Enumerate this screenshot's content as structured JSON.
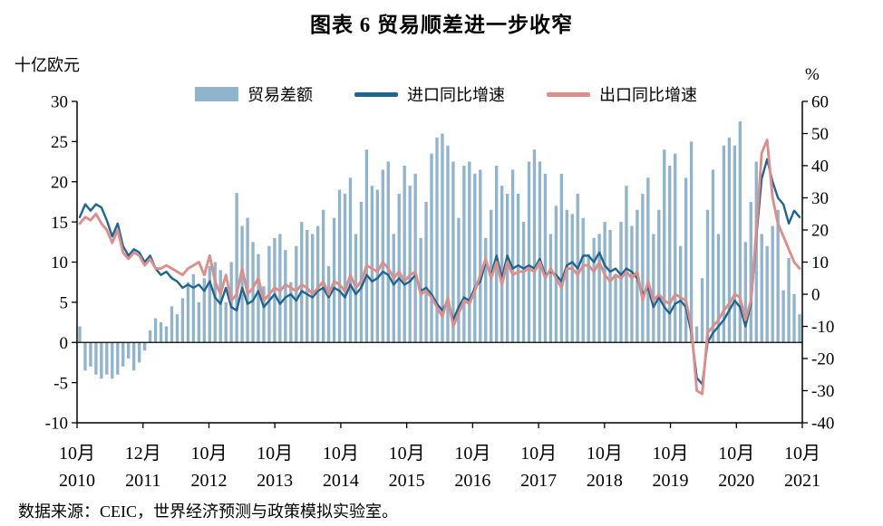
{
  "page": {
    "title": "图表 6 贸易顺差进一步收窄",
    "source": "数据来源：CEIC，世界经济预测与政策模拟实验室。"
  },
  "chart_data": {
    "type": "combo-bar-line",
    "title": "图表 6 贸易顺差进一步收窄",
    "legend_position": "top",
    "grid": false,
    "left_axis": {
      "label": "十亿欧元",
      "min": -10,
      "max": 30,
      "ticks": [
        30,
        25,
        20,
        15,
        10,
        5,
        0,
        -5,
        -10
      ]
    },
    "right_axis": {
      "label": "%",
      "min": -40,
      "max": 60,
      "ticks": [
        60,
        50,
        40,
        30,
        20,
        10,
        0,
        -10,
        -20,
        -30,
        -40
      ]
    },
    "x": {
      "start": "2010-10",
      "end": "2021-11",
      "frequency": "monthly"
    },
    "x_ticks": [
      {
        "month": "10月",
        "year": "2010"
      },
      {
        "month": "12月",
        "year": "2011"
      },
      {
        "month": "10月",
        "year": "2012"
      },
      {
        "month": "10月",
        "year": "2013"
      },
      {
        "month": "10月",
        "year": "2014"
      },
      {
        "month": "10月",
        "year": "2015"
      },
      {
        "month": "10月",
        "year": "2016"
      },
      {
        "month": "10月",
        "year": "2017"
      },
      {
        "month": "10月",
        "year": "2018"
      },
      {
        "month": "10月",
        "year": "2019"
      },
      {
        "month": "10月",
        "year": "2020"
      },
      {
        "month": "10月",
        "year": "2021"
      }
    ],
    "series": [
      {
        "name": "贸易差额",
        "type": "bar",
        "axis": "left",
        "color": "#8FB4CB",
        "values": [
          2.0,
          -3.5,
          -3.0,
          -4.0,
          -4.5,
          -4.0,
          -4.5,
          -4.0,
          -3.0,
          -2.0,
          -3.5,
          -2.5,
          -1.0,
          1.5,
          3.0,
          2.5,
          2.0,
          4.5,
          3.5,
          5.5,
          7.5,
          8.5,
          5.0,
          8.0,
          9.5,
          10.0,
          9.0,
          5.0,
          10.0,
          18.6,
          14.5,
          15.5,
          12.5,
          11.0,
          7.0,
          12.0,
          13.0,
          13.5,
          11.5,
          7.5,
          12.0,
          15.0,
          14.0,
          13.5,
          14.5,
          16.5,
          9.5,
          15.5,
          19.0,
          18.5,
          20.5,
          13.5,
          17.5,
          24.0,
          19.5,
          19.0,
          21.5,
          22.5,
          13.5,
          18.5,
          22.0,
          19.5,
          21.0,
          13.0,
          17.5,
          23.5,
          25.5,
          26.0,
          24.5,
          22.5,
          15.5,
          22.0,
          22.5,
          21.0,
          21.5,
          13.0,
          16.5,
          22.0,
          19.5,
          18.5,
          21.5,
          18.5,
          15.0,
          22.5,
          24.0,
          22.5,
          21.0,
          13.5,
          17.0,
          21.0,
          16.5,
          16.0,
          18.5,
          15.5,
          11.0,
          13.0,
          13.5,
          15.0,
          14.0,
          8.5,
          15.0,
          19.5,
          14.5,
          16.5,
          18.5,
          20.5,
          13.5,
          16.5,
          24.0,
          22.0,
          23.5,
          12.0,
          20.5,
          25.0,
          2.0,
          8.0,
          16.5,
          21.5,
          13.5,
          24.5,
          25.5,
          24.5,
          27.5,
          12.5,
          17.5,
          22.5,
          13.5,
          12.0,
          14.5,
          16.5,
          6.5,
          10.5,
          6.0,
          3.5
        ]
      },
      {
        "name": "进口同比增速",
        "type": "line",
        "axis": "right",
        "color": "#1F6592",
        "values": [
          24,
          28,
          26,
          28,
          27,
          23,
          18,
          22,
          15,
          12,
          14,
          13,
          10,
          12,
          8,
          6,
          7,
          5,
          4,
          2,
          3,
          2,
          3,
          1,
          4,
          -1,
          -3,
          2,
          -4,
          -5,
          2,
          -3,
          -2,
          1,
          -4,
          -2,
          0,
          -3,
          -1,
          0,
          -2,
          1,
          0,
          -1,
          1,
          2,
          -1,
          2,
          1,
          -1,
          3,
          0,
          2,
          6,
          4,
          5,
          7,
          6,
          3,
          5,
          3,
          4,
          6,
          1,
          2,
          0,
          -3,
          -5,
          -2,
          -8,
          -4,
          -1,
          -2,
          2,
          4,
          10,
          6,
          12,
          5,
          12,
          8,
          9,
          8,
          9,
          8,
          11,
          6,
          7,
          6,
          4,
          9,
          10,
          8,
          12,
          12,
          10,
          13,
          9,
          7,
          8,
          6,
          8,
          7,
          5,
          0,
          2,
          -4,
          -1,
          -4,
          -6,
          -3,
          -2,
          -4,
          -12,
          -26,
          -28,
          -15,
          -12,
          -10,
          -8,
          -5,
          -2,
          -4,
          -10,
          -3,
          18,
          36,
          42,
          35,
          30,
          28,
          22,
          26,
          24
        ]
      },
      {
        "name": "出口同比增速",
        "type": "line",
        "axis": "right",
        "color": "#DC8E8B",
        "values": [
          22,
          24,
          23,
          25,
          22,
          20,
          16,
          20,
          13,
          11,
          13,
          12,
          9,
          11,
          8,
          8,
          9,
          8,
          7,
          6,
          8,
          9,
          10,
          6,
          12,
          4,
          0,
          6,
          -2,
          0,
          8,
          0,
          2,
          5,
          -2,
          0,
          2,
          1,
          3,
          2,
          1,
          3,
          2,
          0,
          2,
          4,
          0,
          4,
          3,
          1,
          6,
          2,
          4,
          9,
          8,
          7,
          10,
          8,
          5,
          7,
          4,
          6,
          7,
          0,
          1,
          -1,
          -4,
          -7,
          -1,
          -10,
          -6,
          -2,
          -3,
          1,
          6,
          11,
          5,
          10,
          3,
          10,
          6,
          7,
          7,
          8,
          7,
          10,
          5,
          8,
          5,
          2,
          8,
          8,
          6,
          9,
          9,
          7,
          10,
          6,
          4,
          6,
          5,
          7,
          5,
          7,
          -2,
          4,
          -2,
          0,
          -2,
          -3,
          0,
          -1,
          -2,
          -10,
          -30,
          -31,
          -12,
          -10,
          -8,
          -5,
          -3,
          0,
          -1,
          -8,
          -2,
          20,
          44,
          48,
          30,
          22,
          18,
          14,
          10,
          8
        ]
      }
    ]
  }
}
